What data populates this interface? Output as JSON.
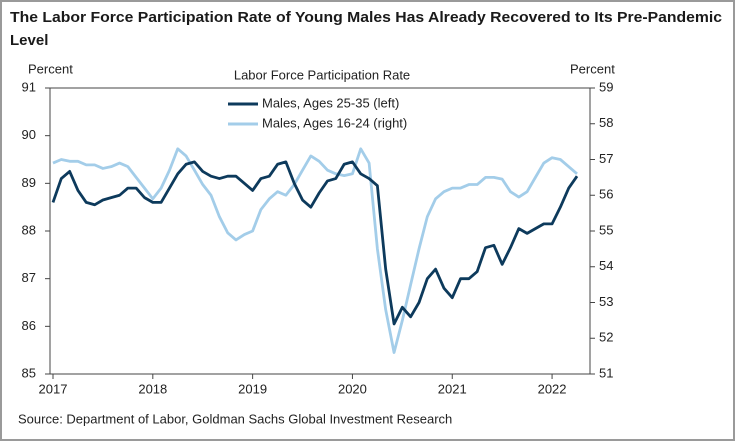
{
  "chart_data": {
    "type": "line",
    "title_lines": [
      "The Labor Force Participation Rate of Young Males Has Already Recovered to Its Pre-Pandemic",
      "Level"
    ],
    "subtitle": "Labor Force Participation Rate",
    "y_label": "Percent",
    "y2_label": "Percent",
    "source": "Source: Department of Labor, Goldman Sachs Global Investment Research",
    "x": [
      2017,
      2017.083,
      2017.167,
      2017.25,
      2017.333,
      2017.417,
      2017.5,
      2017.583,
      2017.667,
      2017.75,
      2017.833,
      2017.917,
      2018,
      2018.083,
      2018.167,
      2018.25,
      2018.333,
      2018.417,
      2018.5,
      2018.583,
      2018.667,
      2018.75,
      2018.833,
      2018.917,
      2019,
      2019.083,
      2019.167,
      2019.25,
      2019.333,
      2019.417,
      2019.5,
      2019.583,
      2019.667,
      2019.75,
      2019.833,
      2019.917,
      2020,
      2020.083,
      2020.167,
      2020.25,
      2020.333,
      2020.417,
      2020.5,
      2020.583,
      2020.667,
      2020.75,
      2020.833,
      2020.917,
      2021,
      2021.083,
      2021.167,
      2021.25,
      2021.333,
      2021.417,
      2021.5,
      2021.583,
      2021.667,
      2021.75,
      2021.833,
      2021.917,
      2022,
      2022.083,
      2022.167,
      2022.25
    ],
    "series": [
      {
        "name": "Males, Ages 25-35 (left)",
        "color": "#0d3a5c",
        "axis": "y",
        "values": [
          88.6,
          89.1,
          89.25,
          88.85,
          88.6,
          88.55,
          88.65,
          88.7,
          88.75,
          88.9,
          88.9,
          88.7,
          88.6,
          88.6,
          88.9,
          89.2,
          89.4,
          89.45,
          89.25,
          89.15,
          89.1,
          89.15,
          89.15,
          89.0,
          88.85,
          89.1,
          89.15,
          89.4,
          89.45,
          89.0,
          88.65,
          88.5,
          88.8,
          89.05,
          89.1,
          89.4,
          89.45,
          89.2,
          89.1,
          88.95,
          87.2,
          86.05,
          86.4,
          86.2,
          86.5,
          87.0,
          87.2,
          86.8,
          86.6,
          87.0,
          87.0,
          87.15,
          87.65,
          87.7,
          87.3,
          87.65,
          88.05,
          87.95,
          88.05,
          88.15,
          88.15,
          88.5,
          88.9,
          89.15
        ]
      },
      {
        "name": "Males, Ages 16-24 (right)",
        "color": "#a3cde9",
        "axis": "y2",
        "values": [
          56.9,
          57.0,
          56.95,
          56.95,
          56.85,
          56.85,
          56.75,
          56.8,
          56.9,
          56.8,
          56.5,
          56.2,
          55.9,
          56.2,
          56.7,
          57.3,
          57.1,
          56.7,
          56.3,
          56.0,
          55.4,
          54.95,
          54.75,
          54.9,
          55.0,
          55.6,
          55.9,
          56.1,
          56.0,
          56.3,
          56.7,
          57.1,
          56.95,
          56.7,
          56.6,
          56.55,
          56.6,
          57.3,
          56.9,
          54.5,
          52.8,
          51.6,
          52.5,
          53.5,
          54.5,
          55.4,
          55.9,
          56.1,
          56.2,
          56.2,
          56.3,
          56.3,
          56.5,
          56.5,
          56.45,
          56.1,
          55.95,
          56.1,
          56.5,
          56.9,
          57.05,
          57.0,
          56.8,
          56.6
        ]
      }
    ],
    "xlim": [
      2016.97,
      2022.38
    ],
    "xticks": [
      2017,
      2018,
      2019,
      2020,
      2021,
      2022
    ],
    "ylim": [
      85,
      91
    ],
    "yticks": [
      85,
      86,
      87,
      88,
      89,
      90,
      91
    ],
    "y2lim": [
      51,
      59
    ],
    "y2ticks": [
      51,
      52,
      53,
      54,
      55,
      56,
      57,
      58,
      59
    ]
  }
}
